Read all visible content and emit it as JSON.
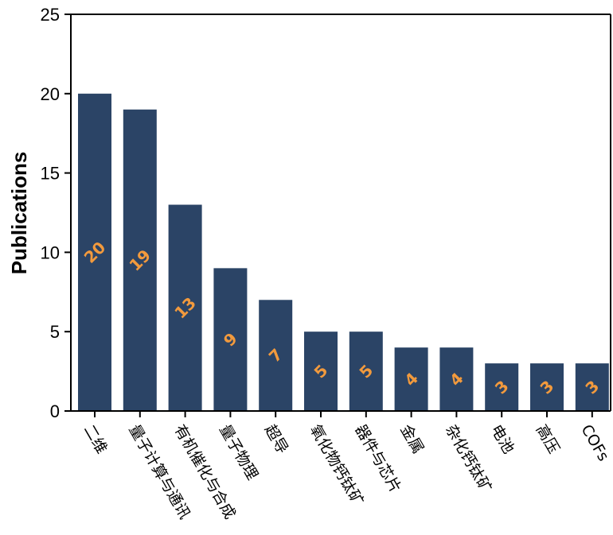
{
  "chart_data": {
    "type": "bar",
    "title": "",
    "xlabel": "",
    "ylabel": "Publications",
    "ylim": [
      0,
      25
    ],
    "yticks": [
      0,
      5,
      10,
      15,
      20,
      25
    ],
    "categories": [
      "二维",
      "量子计算与通讯",
      "有机催化与合成",
      "量子物理",
      "超导",
      "氧化物钙钛矿",
      "器件与芯片",
      "金属",
      "杂化钙钛矿",
      "电池",
      "高压",
      "COFs"
    ],
    "values": [
      20,
      19,
      13,
      9,
      7,
      5,
      5,
      4,
      4,
      3,
      3,
      3
    ],
    "grid": false,
    "legend": "none",
    "bar_color": "#2b4466",
    "data_label_color": "#f29a3d",
    "data_label_position": "bar-middle-rotated"
  }
}
